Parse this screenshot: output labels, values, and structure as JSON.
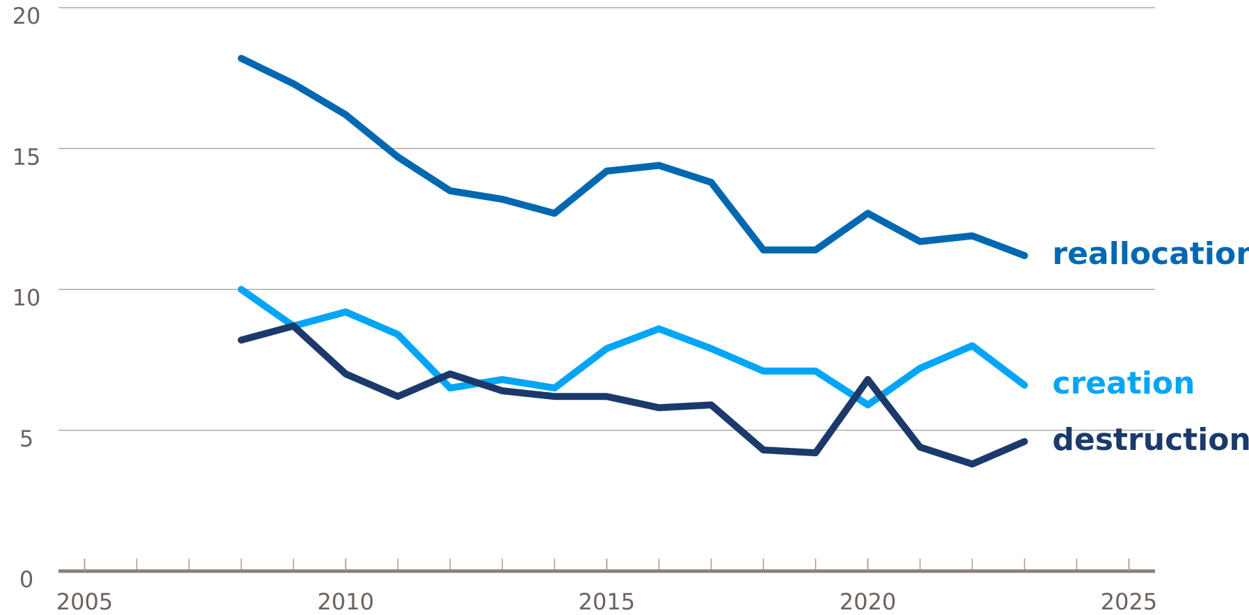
{
  "chart_data": {
    "type": "line",
    "x": [
      2008,
      2009,
      2010,
      2011,
      2012,
      2013,
      2014,
      2015,
      2016,
      2017,
      2018,
      2019,
      2020,
      2021,
      2022,
      2023
    ],
    "series": [
      {
        "name": "reallocation",
        "color": "#0067b1",
        "values": [
          18.2,
          17.3,
          16.2,
          14.7,
          13.5,
          13.2,
          12.7,
          14.2,
          14.4,
          13.8,
          11.4,
          11.4,
          12.7,
          11.7,
          11.9,
          11.2
        ]
      },
      {
        "name": "creation",
        "color": "#00a6f5",
        "values": [
          10.0,
          8.7,
          9.2,
          8.4,
          6.5,
          6.8,
          6.5,
          7.9,
          8.6,
          7.9,
          7.1,
          7.1,
          5.9,
          7.2,
          8.0,
          6.6
        ]
      },
      {
        "name": "destruction",
        "color": "#1b3a6b",
        "values": [
          8.2,
          8.7,
          7.0,
          6.2,
          7.0,
          6.4,
          6.2,
          6.2,
          5.8,
          5.9,
          4.3,
          4.2,
          6.8,
          4.4,
          3.8,
          4.6
        ]
      }
    ],
    "xlim": [
      2004.5,
      2025.5
    ],
    "xticks": [
      2005,
      2010,
      2015,
      2020,
      2025
    ],
    "ylim": [
      0,
      20
    ],
    "yticks": [
      0,
      5,
      10,
      15,
      20
    ],
    "grid": true
  }
}
